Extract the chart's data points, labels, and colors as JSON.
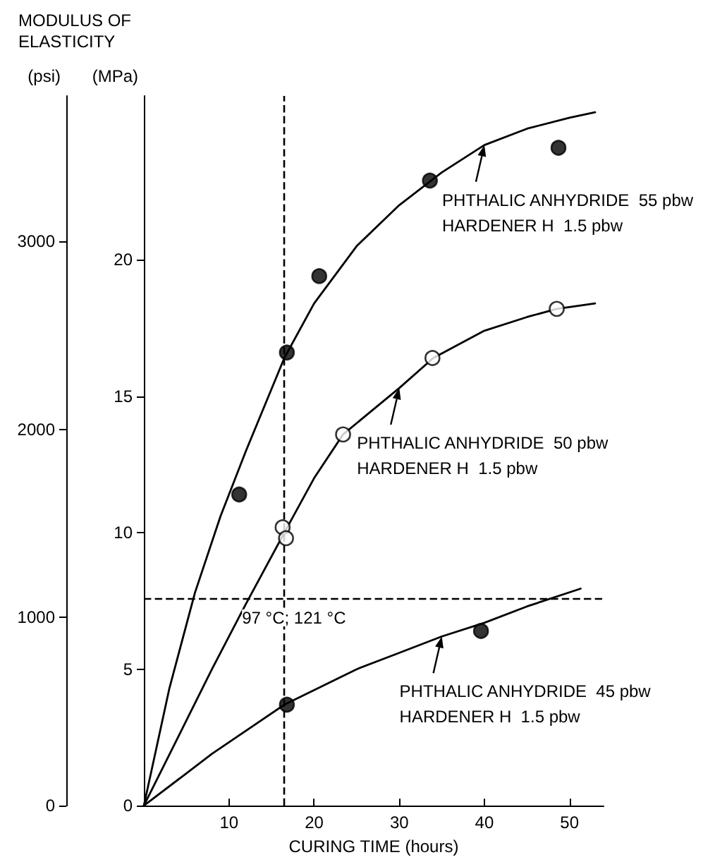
{
  "chart_data": {
    "type": "line",
    "title": "MODULUS OF ELASTICITY",
    "xlabel": "CURING TIME (hours)",
    "ylabel": "(MPa)",
    "y2label": "(psi)",
    "xlim": [
      0,
      54
    ],
    "xticks": [
      10,
      20,
      30,
      40,
      50
    ],
    "ylim": [
      0,
      26
    ],
    "yticks": [
      0,
      5,
      10,
      15,
      20
    ],
    "y2lim": [
      0,
      3771
    ],
    "y2ticks": [
      0,
      1000,
      2000,
      3000
    ],
    "grid": false,
    "marker": "none",
    "line_style": "solid",
    "series": [
      {
        "color": "#000000",
        "x": [
          0,
          3,
          6,
          9,
          12,
          16.5,
          20,
          25,
          30,
          35,
          40,
          45,
          50,
          53
        ],
        "values": [
          0,
          4.3,
          7.8,
          10.6,
          13.0,
          16.4,
          18.4,
          20.5,
          22.0,
          23.2,
          24.2,
          24.8,
          25.2,
          25.4
        ]
      },
      {
        "color": "#000000",
        "x": [
          0,
          8,
          12,
          16.5,
          20,
          23.4,
          30,
          34,
          40,
          45,
          48.5,
          53
        ],
        "values": [
          0,
          5,
          7.4,
          10,
          12,
          13.6,
          15.3,
          16.4,
          17.4,
          17.9,
          18.2,
          18.4
        ]
      },
      {
        "color": "#000000",
        "x": [
          0,
          8,
          16.5,
          25,
          30,
          35,
          40,
          45,
          51.3
        ],
        "values": [
          0,
          1.9,
          3.7,
          5.0,
          5.6,
          6.2,
          6.7,
          7.3,
          7.95
        ]
      },
      {
        "type": "scatter",
        "marker": "circle",
        "color": "#000000",
        "x": [
          11.2,
          16.8,
          20.6,
          33.6,
          48.7
        ],
        "values": [
          11.4,
          16.6,
          19.4,
          22.9,
          24.1
        ]
      },
      {
        "type": "scatter",
        "marker": "circle",
        "color": "#ffffff",
        "x": [
          16.3,
          16.7,
          23.4,
          33.9,
          48.5
        ],
        "values": [
          10.2,
          9.8,
          13.6,
          16.4,
          18.2
        ]
      },
      {
        "type": "scatter",
        "marker": "circle",
        "color": "#000000",
        "x": [
          16.8,
          39.6
        ],
        "values": [
          3.7,
          6.4
        ]
      }
    ],
    "ref_lines": [
      {
        "axis": "x",
        "value": 16.5,
        "line_style": "dashed"
      },
      {
        "axis": "y",
        "value": 7.6,
        "line_style": "dashed"
      }
    ],
    "annotations": [
      {
        "text": "97 °C; 121 °C",
        "x": 16.5,
        "y": 7.6
      },
      {
        "text": "PHTHALIC ANHYDRIDE  55 pbw\nHARDENER H  1.5 pbw",
        "x": 40,
        "y": 24.2
      },
      {
        "text": "PHTHALIC ANHYDRIDE  50 pbw\nHARDENER H  1.5 pbw",
        "x": 30,
        "y": 15.3
      },
      {
        "text": "PHTHALIC ANHYDRIDE  45 pbw\nHARDENER H  1.5 pbw",
        "x": 35,
        "y": 6.2
      }
    ]
  }
}
